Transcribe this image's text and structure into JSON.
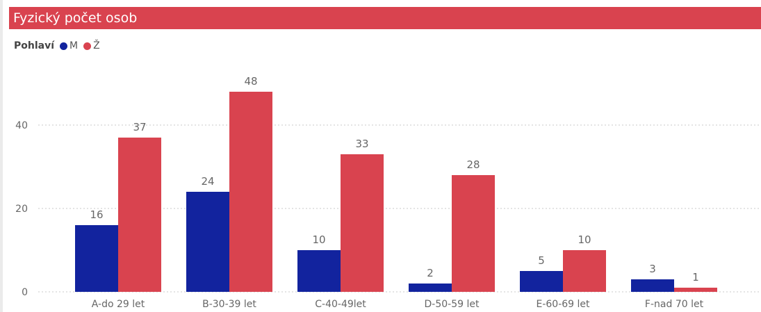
{
  "header": {
    "title": "Fyzický počet osob"
  },
  "legend": {
    "title": "Pohlaví",
    "items": [
      {
        "label": "M",
        "color": "#12239e"
      },
      {
        "label": "Ž",
        "color": "#d9434f"
      }
    ]
  },
  "chart_data": {
    "type": "bar",
    "title": "Fyzický počet osob",
    "xlabel": "",
    "ylabel": "",
    "categories": [
      "A-do 29 let",
      "B-30-39 let",
      "C-40-49let",
      "D-50-59 let",
      "E-60-69 let",
      "F-nad 70 let"
    ],
    "series": [
      {
        "name": "M",
        "color": "#12239e",
        "values": [
          16,
          24,
          10,
          2,
          5,
          3
        ]
      },
      {
        "name": "Ž",
        "color": "#d9434f",
        "values": [
          37,
          48,
          33,
          28,
          10,
          1
        ]
      }
    ],
    "yticks": [
      0,
      20,
      40
    ],
    "ylim": [
      0,
      52
    ],
    "grid": true,
    "legend_position": "top-left",
    "data_labels": true
  }
}
